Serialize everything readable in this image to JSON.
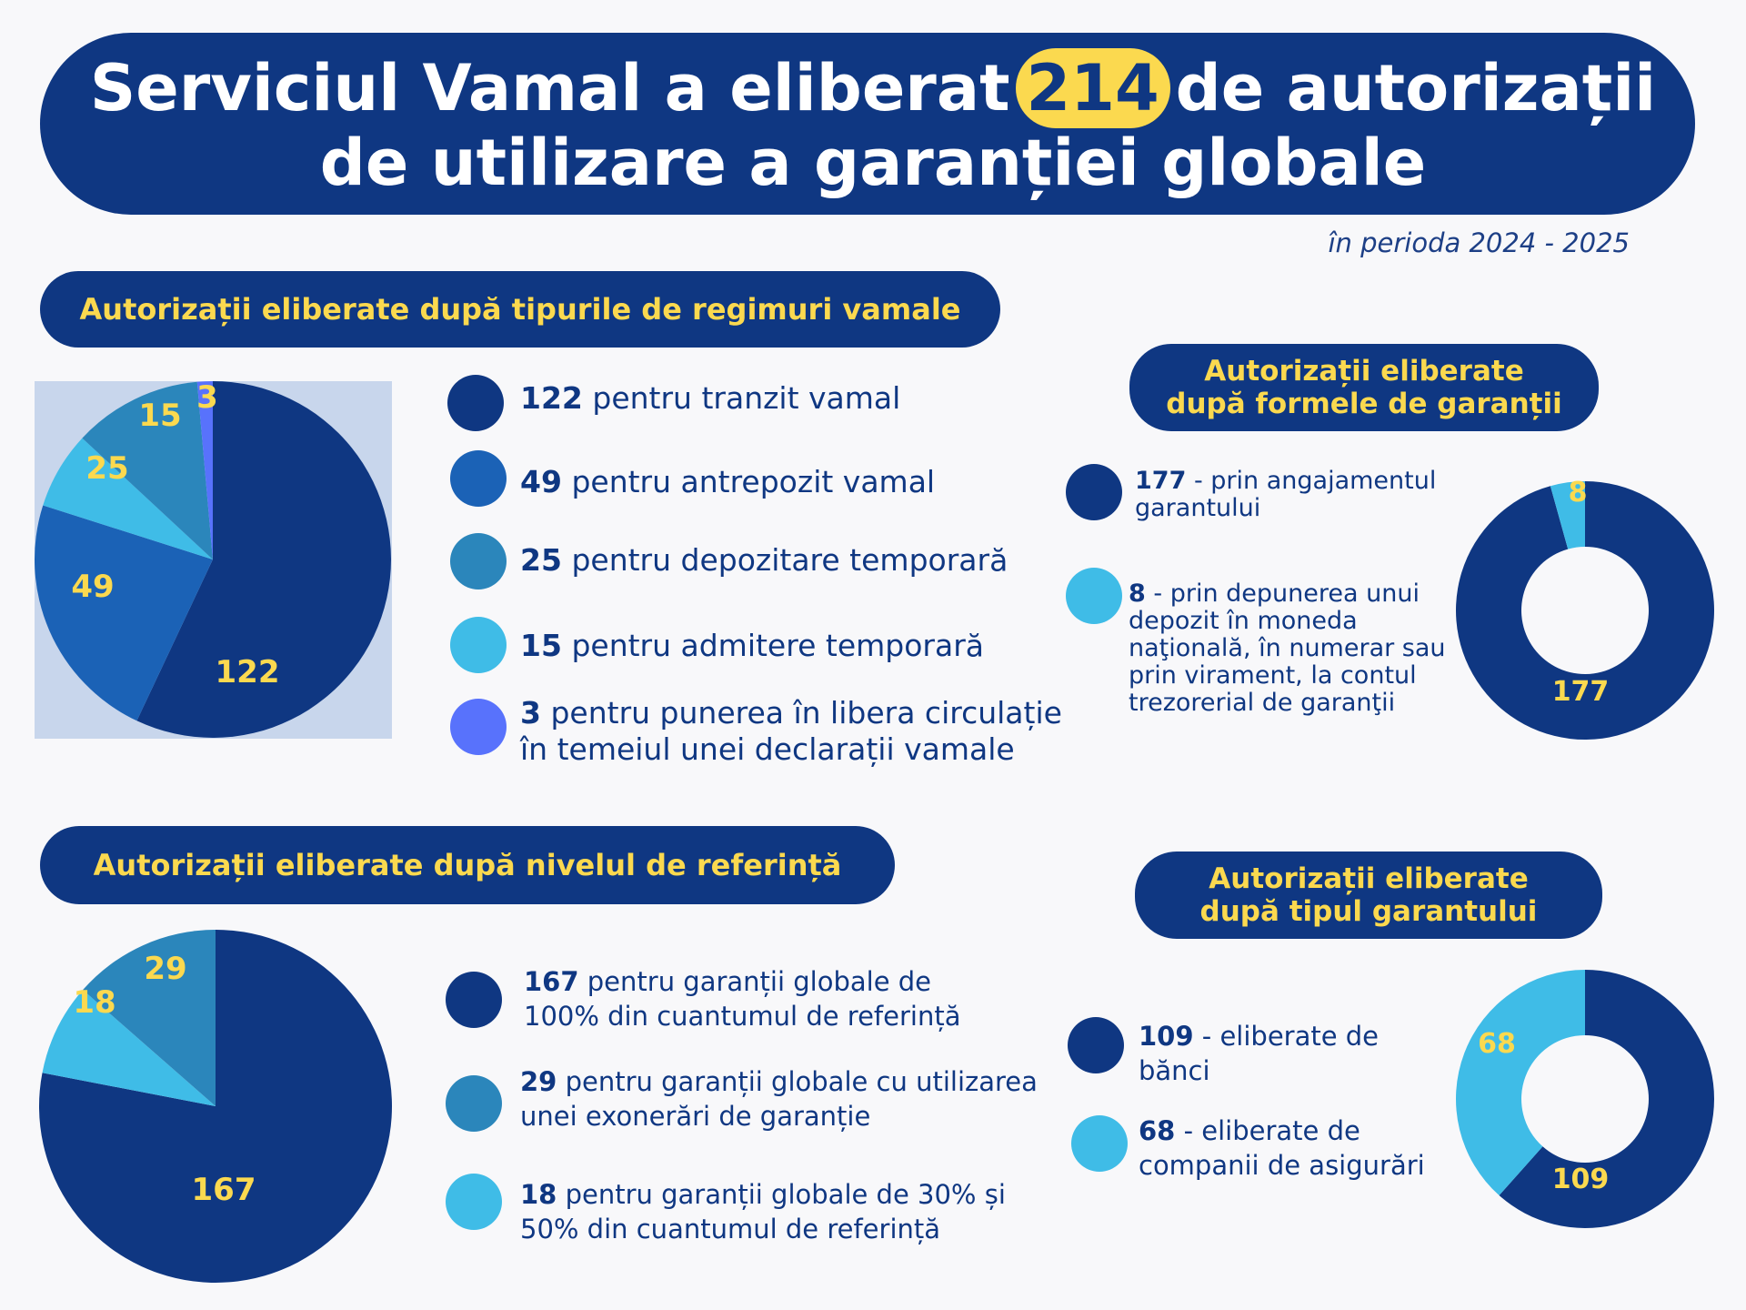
{
  "title": {
    "before": "Serviciul Vamal a eliberat",
    "highlight": "214",
    "after": "de autorizații",
    "line2": "de utilizare a garanției globale"
  },
  "period": "în perioda 2024 - 2025",
  "colors": {
    "dark_blue": "#0f3782",
    "blue": "#1b62b6",
    "teal": "#2b86bb",
    "light_blue": "#3fbce7",
    "violet": "#5872fc",
    "yellow": "#fbd94f",
    "pie_panel": "#c8d6ec"
  },
  "sections": {
    "regimes": "Autorizații eliberate după tipurile de regimuri vamale",
    "guarantee_forms_l1": "Autorizații eliberate",
    "guarantee_forms_l2": "după formele de garanții",
    "reference_level": "Autorizații eliberate după nivelul de referință",
    "guarantor_type_l1": "Autorizații eliberate",
    "guarantor_type_l2": "după tipul garantului"
  },
  "legends": {
    "regimes": [
      {
        "value": "122",
        "text": "pentru tranzit vamal"
      },
      {
        "value": "49",
        "text": "pentru antrepozit vamal"
      },
      {
        "value": "25",
        "text": "pentru depozitare temporară"
      },
      {
        "value": "15",
        "text": "pentru admitere temporară"
      },
      {
        "value": "3",
        "text": "pentru punerea în libera circulație",
        "text2": "în temeiul unei declarații vamale"
      }
    ],
    "guarantee_forms": [
      {
        "value": "177",
        "text": "- prin angajamentul",
        "text2": "garantului"
      },
      {
        "value": "8",
        "text": "- prin depunerea unui",
        "text2": "depozit în moneda",
        "text3": "naţională, în numerar sau",
        "text4": "prin virament, la contul",
        "text5": "trezorerial de garanţii"
      }
    ],
    "reference_level": [
      {
        "value": "167",
        "text": "pentru garanții globale de",
        "text2": "100% din cuantumul de referință"
      },
      {
        "value": "29",
        "text": "pentru garanții globale cu utilizarea",
        "text2": "unei exonerări de garanție"
      },
      {
        "value": "18",
        "text": "pentru garanții globale de 30% și",
        "text2": "50% din cuantumul de referință"
      }
    ],
    "guarantor_type": [
      {
        "value": "109",
        "text": "- eliberate de",
        "text2": "bănci"
      },
      {
        "value": "68",
        "text": "- eliberate de",
        "text2": "companii de asigurări"
      }
    ]
  },
  "chart_data": [
    {
      "type": "pie",
      "title": "Autorizații eliberate după tipurile de regimuri vamale",
      "categories": [
        "pentru tranzit vamal",
        "pentru antrepozit vamal",
        "pentru depozitare temporară",
        "pentru admitere temporară",
        "pentru punerea în libera circulație în temeiul unei declarații vamale"
      ],
      "values": [
        122,
        49,
        25,
        15,
        3
      ],
      "labels": [
        "122",
        "49",
        "25",
        "15",
        "3"
      ],
      "colors": [
        "#0f3782",
        "#1b62b6",
        "#2b86bb",
        "#3fbce7",
        "#5872fc"
      ]
    },
    {
      "type": "pie",
      "variant": "donut",
      "title": "Autorizații eliberate după formele de garanții",
      "categories": [
        "prin angajamentul garantului",
        "prin depunerea unui depozit în moneda naţională, în numerar sau prin virament, la contul trezorerial de garanţii"
      ],
      "values": [
        177,
        8
      ],
      "labels": [
        "177",
        "8"
      ],
      "colors": [
        "#0f3782",
        "#3fbce7"
      ]
    },
    {
      "type": "pie",
      "title": "Autorizații eliberate după nivelul de referință",
      "categories": [
        "pentru garanții globale de 100% din cuantumul de referință",
        "pentru garanții globale de 30% și 50% din cuantumul de referință",
        "pentru garanții globale cu utilizarea unei exonerări de garanție"
      ],
      "values": [
        167,
        18,
        29
      ],
      "labels": [
        "167",
        "18",
        "29"
      ],
      "colors": [
        "#0f3782",
        "#3fbce7",
        "#2b86bb"
      ]
    },
    {
      "type": "pie",
      "variant": "donut",
      "title": "Autorizații eliberate după tipul garantului",
      "categories": [
        "eliberate de bănci",
        "eliberate de companii de asigurări"
      ],
      "values": [
        109,
        68
      ],
      "labels": [
        "109",
        "68"
      ],
      "colors": [
        "#0f3782",
        "#3fbce7"
      ]
    }
  ]
}
